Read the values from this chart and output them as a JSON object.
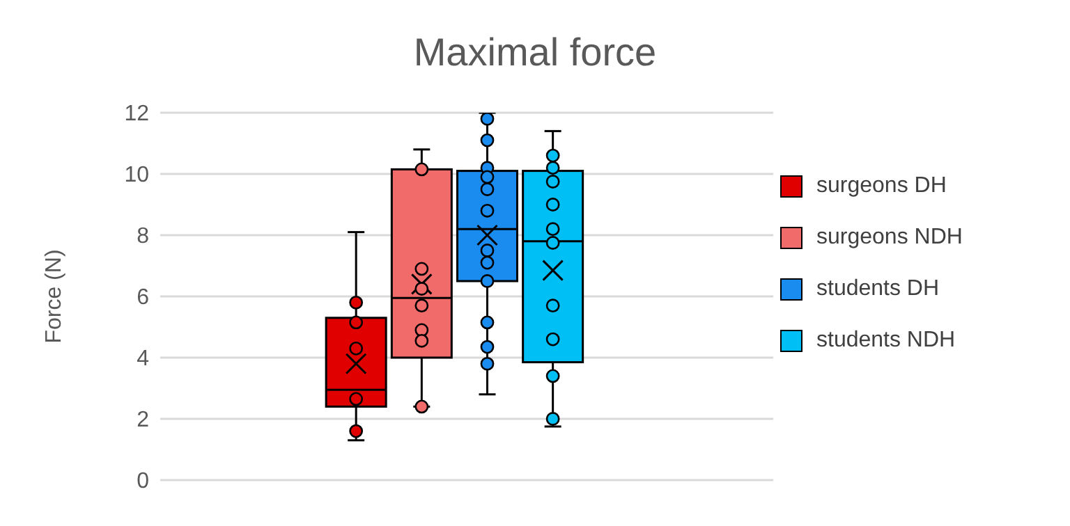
{
  "chart_data": {
    "type": "box",
    "title": "Maximal force",
    "ylabel": "Force (N)",
    "categories": [
      null
    ],
    "ylim": [
      0,
      12
    ],
    "yticks": [
      0,
      2,
      4,
      6,
      8,
      10,
      12
    ],
    "grid": "y",
    "legend": "right",
    "series": [
      {
        "name": "surgeons DH",
        "color": "#e00000",
        "boxes": [
          {
            "low": 1.3,
            "q1": 2.4,
            "median": 2.95,
            "q3": 5.3,
            "high": 8.1,
            "mean": 3.8,
            "outliers": [
              5.8,
              5.15,
              4.3,
              2.65,
              1.6
            ]
          }
        ]
      },
      {
        "name": "surgeons NDH",
        "color": "#f26b6b",
        "boxes": [
          {
            "low": 2.4,
            "q1": 4,
            "median": 5.95,
            "q3": 10.15,
            "high": 10.8,
            "mean": 6.4,
            "outliers": [
              10.15,
              6.9,
              6.25,
              5.7,
              4.9,
              4.55,
              2.4
            ]
          }
        ]
      },
      {
        "name": "students DH",
        "color": "#1a8cf0",
        "boxes": [
          {
            "low": 2.8,
            "q1": 6.5,
            "median": 8.2,
            "q3": 10.1,
            "high": 12,
            "mean": 8,
            "outliers": [
              11.8,
              11.1,
              10.2,
              9.9,
              9.5,
              8.8,
              7.5,
              7.1,
              6.5,
              5.15,
              4.35,
              3.8
            ]
          }
        ]
      },
      {
        "name": "students NDH",
        "color": "#00bff5",
        "boxes": [
          {
            "low": 1.75,
            "q1": 3.85,
            "median": 7.8,
            "q3": 10.1,
            "high": 11.4,
            "mean": 6.85,
            "outliers": [
              10.6,
              10.2,
              9.75,
              9,
              8.2,
              7.75,
              5.7,
              4.6,
              3.4,
              2
            ]
          }
        ]
      }
    ]
  }
}
